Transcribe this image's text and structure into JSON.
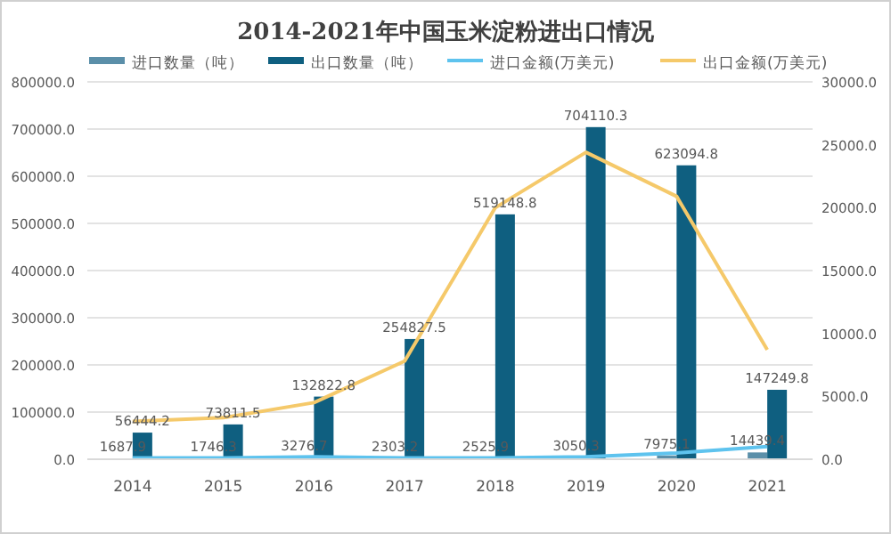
{
  "chart_data": {
    "type": "bar",
    "title": "2014-2021年中国玉米淀粉进出口情况",
    "categories": [
      "2014",
      "2015",
      "2016",
      "2017",
      "2018",
      "2019",
      "2020",
      "2021"
    ],
    "series": [
      {
        "name": "进口数量（吨）",
        "color": "#5b8fa9",
        "data_labels": true,
        "values": [
          1687.9,
          1746.3,
          3276.7,
          2303.2,
          2525.9,
          3050.3,
          7975.1,
          14439.4
        ]
      },
      {
        "name": "出口数量（吨）",
        "color": "#0f5f80",
        "data_labels": true,
        "values": [
          56444.2,
          73811.5,
          132822.8,
          254827.5,
          519148.8,
          704110.3,
          623094.8,
          147249.8
        ]
      },
      {
        "name": "进口金额(万美元)",
        "type": "line",
        "axis": "y2",
        "color": "#5ec3ee",
        "values": [
          100,
          100,
          200,
          100,
          100,
          200,
          500,
          1000
        ]
      },
      {
        "name": "出口金额(万美元)",
        "type": "line",
        "axis": "y2",
        "color": "#f5c96a",
        "values": [
          3000,
          3300,
          4500,
          7800,
          20000,
          24400,
          20900,
          8700
        ]
      }
    ],
    "ylim": [
      0,
      800000
    ],
    "yticks": [
      {
        "value": 0,
        "label": "0.0"
      },
      {
        "value": 100000,
        "label": "100000.0"
      },
      {
        "value": 200000,
        "label": "200000.0"
      },
      {
        "value": 300000,
        "label": "300000.0"
      },
      {
        "value": 400000,
        "label": "400000.0"
      },
      {
        "value": 500000,
        "label": "500000.0"
      },
      {
        "value": 600000,
        "label": "600000.0"
      },
      {
        "value": 700000,
        "label": "700000.0"
      },
      {
        "value": 800000,
        "label": "800000.0"
      }
    ],
    "y2lim": [
      0,
      30000
    ],
    "y2ticks": [
      {
        "value": 0,
        "label": "0.0"
      },
      {
        "value": 5000,
        "label": "5000.0"
      },
      {
        "value": 10000,
        "label": "10000.0"
      },
      {
        "value": 15000,
        "label": "15000.0"
      },
      {
        "value": 20000,
        "label": "20000.0"
      },
      {
        "value": 25000,
        "label": "25000.0"
      },
      {
        "value": 30000,
        "label": "30000.0"
      }
    ],
    "grid": "y",
    "legend": "top",
    "marker": "none",
    "line_style": "solid"
  }
}
